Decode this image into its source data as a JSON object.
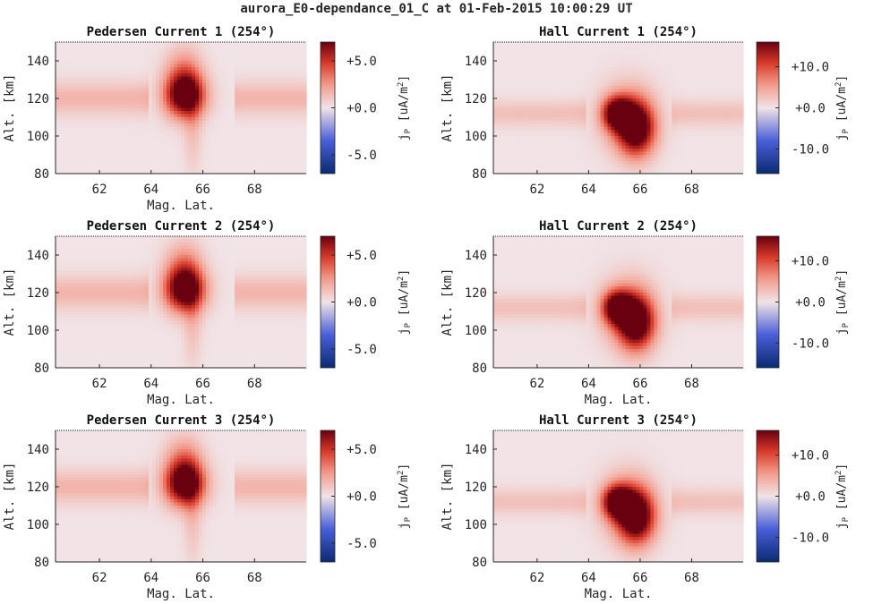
{
  "figure": {
    "title": "aurora_E0-dependance_01_C at 01-Feb-2015 10:00:29 UT"
  },
  "colors": {
    "neg_dark": "#0a2a72",
    "neg_mid": "#4a5fd8",
    "neutral": "#f1e3e6",
    "pos_light": "#f29a8a",
    "pos_mid": "#d93a2a",
    "pos_dark": "#680010",
    "axis": "#262626"
  },
  "chart_data": [
    {
      "type": "heatmap",
      "title": "Pedersen Current 1 (254°)",
      "xlabel": "Mag. Lat.",
      "ylabel": "Alt. [km]",
      "xlim": [
        60.3,
        70.0
      ],
      "ylim": [
        80,
        150
      ],
      "xticks": [
        62,
        64,
        66,
        68
      ],
      "yticks": [
        80,
        100,
        120,
        140
      ],
      "colorbar": {
        "label": "j_P [uA/m^2]",
        "ticks": [
          "+5.0",
          "+0.0",
          "-5.0"
        ],
        "tick_values": [
          5,
          0,
          -5
        ],
        "range": [
          -7,
          7
        ]
      },
      "features": {
        "band": {
          "center_alt": 120,
          "width_alt": 9,
          "value": 1.6,
          "gap_lat": [
            63.9,
            67.2
          ]
        },
        "blobs": [
          {
            "lat": 65.3,
            "alt": 121,
            "sigma_lat": 0.55,
            "sigma_alt": 8,
            "value": 7.5
          },
          {
            "lat": 65.25,
            "alt": 132,
            "sigma_lat": 0.5,
            "sigma_alt": 10,
            "value": 3.2
          },
          {
            "lat": 65.6,
            "alt": 106,
            "sigma_lat": 0.25,
            "sigma_alt": 18,
            "value": 1.3
          }
        ]
      }
    },
    {
      "type": "heatmap",
      "title": "Hall Current 1 (254°)",
      "xlabel": "",
      "ylabel": "Alt. [km]",
      "xlim": [
        60.3,
        70.0
      ],
      "ylim": [
        80,
        150
      ],
      "xticks": [
        62,
        64,
        66,
        68
      ],
      "yticks": [
        80,
        100,
        120,
        140
      ],
      "colorbar": {
        "label": "j_P [uA/m^2]",
        "ticks": [
          "+10.0",
          "+0.0",
          "-10.0"
        ],
        "tick_values": [
          10,
          0,
          -10
        ],
        "range": [
          -16,
          16
        ]
      },
      "features": {
        "band": {
          "center_alt": 112,
          "width_alt": 7,
          "value": 2.8,
          "gap_lat": [
            63.9,
            67.2
          ]
        },
        "blobs": [
          {
            "lat": 65.1,
            "alt": 112,
            "sigma_lat": 0.4,
            "sigma_alt": 6,
            "value": 17
          },
          {
            "lat": 65.85,
            "alt": 104,
            "sigma_lat": 0.5,
            "sigma_alt": 10,
            "value": 18
          },
          {
            "lat": 65.5,
            "alt": 110,
            "sigma_lat": 0.75,
            "sigma_alt": 13,
            "value": 6
          }
        ]
      }
    },
    {
      "type": "heatmap",
      "title": "Pedersen Current 2 (254°)",
      "xlabel": "Mag. Lat.",
      "ylabel": "Alt. [km]",
      "xlim": [
        60.3,
        70.0
      ],
      "ylim": [
        80,
        150
      ],
      "xticks": [
        62,
        64,
        66,
        68
      ],
      "yticks": [
        80,
        100,
        120,
        140
      ],
      "colorbar": {
        "label": "j_P [uA/m^2]",
        "ticks": [
          "+5.0",
          "+0.0",
          "-5.0"
        ],
        "tick_values": [
          5,
          0,
          -5
        ],
        "range": [
          -7,
          7
        ]
      },
      "features": {
        "band": {
          "center_alt": 120,
          "width_alt": 9,
          "value": 1.6,
          "gap_lat": [
            63.9,
            67.2
          ]
        },
        "blobs": [
          {
            "lat": 65.3,
            "alt": 121,
            "sigma_lat": 0.55,
            "sigma_alt": 8,
            "value": 7.5
          },
          {
            "lat": 65.25,
            "alt": 132,
            "sigma_lat": 0.5,
            "sigma_alt": 10,
            "value": 3.2
          },
          {
            "lat": 65.6,
            "alt": 106,
            "sigma_lat": 0.25,
            "sigma_alt": 18,
            "value": 1.3
          }
        ]
      }
    },
    {
      "type": "heatmap",
      "title": "Hall Current 2 (254°)",
      "xlabel": "Mag. Lat.",
      "ylabel": "Alt. [km]",
      "xlim": [
        60.3,
        70.0
      ],
      "ylim": [
        80,
        150
      ],
      "xticks": [
        62,
        64,
        66,
        68
      ],
      "yticks": [
        80,
        100,
        120,
        140
      ],
      "colorbar": {
        "label": "j_P [uA/m^2]",
        "ticks": [
          "+10.0",
          "+0.0",
          "-10.0"
        ],
        "tick_values": [
          10,
          0,
          -10
        ],
        "range": [
          -16,
          16
        ]
      },
      "features": {
        "band": {
          "center_alt": 112,
          "width_alt": 7,
          "value": 2.8,
          "gap_lat": [
            63.9,
            67.2
          ]
        },
        "blobs": [
          {
            "lat": 65.1,
            "alt": 112,
            "sigma_lat": 0.4,
            "sigma_alt": 6,
            "value": 17
          },
          {
            "lat": 65.85,
            "alt": 104,
            "sigma_lat": 0.5,
            "sigma_alt": 10,
            "value": 18
          },
          {
            "lat": 65.5,
            "alt": 110,
            "sigma_lat": 0.75,
            "sigma_alt": 13,
            "value": 6
          }
        ]
      }
    },
    {
      "type": "heatmap",
      "title": "Pedersen Current 3 (254°)",
      "xlabel": "Mag. Lat.",
      "ylabel": "Alt. [km]",
      "xlim": [
        60.3,
        70.0
      ],
      "ylim": [
        80,
        150
      ],
      "xticks": [
        62,
        64,
        66,
        68
      ],
      "yticks": [
        80,
        100,
        120,
        140
      ],
      "colorbar": {
        "label": "j_P [uA/m^2]",
        "ticks": [
          "+5.0",
          "+0.0",
          "-5.0"
        ],
        "tick_values": [
          5,
          0,
          -5
        ],
        "range": [
          -7,
          7
        ]
      },
      "features": {
        "band": {
          "center_alt": 120,
          "width_alt": 9,
          "value": 1.6,
          "gap_lat": [
            63.9,
            67.2
          ]
        },
        "blobs": [
          {
            "lat": 65.3,
            "alt": 121,
            "sigma_lat": 0.55,
            "sigma_alt": 8,
            "value": 7.5
          },
          {
            "lat": 65.25,
            "alt": 132,
            "sigma_lat": 0.5,
            "sigma_alt": 10,
            "value": 3.2
          },
          {
            "lat": 65.6,
            "alt": 106,
            "sigma_lat": 0.25,
            "sigma_alt": 18,
            "value": 1.3
          }
        ]
      }
    },
    {
      "type": "heatmap",
      "title": "Hall Current 3 (254°)",
      "xlabel": "Mag. Lat.",
      "ylabel": "Alt. [km]",
      "xlim": [
        60.3,
        70.0
      ],
      "ylim": [
        80,
        150
      ],
      "xticks": [
        62,
        64,
        66,
        68
      ],
      "yticks": [
        80,
        100,
        120,
        140
      ],
      "colorbar": {
        "label": "j_P [uA/m^2]",
        "ticks": [
          "+10.0",
          "+0.0",
          "-10.0"
        ],
        "tick_values": [
          10,
          0,
          -10
        ],
        "range": [
          -16,
          16
        ]
      },
      "features": {
        "band": {
          "center_alt": 112,
          "width_alt": 7,
          "value": 2.8,
          "gap_lat": [
            63.9,
            67.2
          ]
        },
        "blobs": [
          {
            "lat": 65.1,
            "alt": 112,
            "sigma_lat": 0.4,
            "sigma_alt": 6,
            "value": 17
          },
          {
            "lat": 65.85,
            "alt": 104,
            "sigma_lat": 0.5,
            "sigma_alt": 10,
            "value": 18
          },
          {
            "lat": 65.5,
            "alt": 110,
            "sigma_lat": 0.75,
            "sigma_alt": 13,
            "value": 6
          }
        ]
      }
    }
  ]
}
